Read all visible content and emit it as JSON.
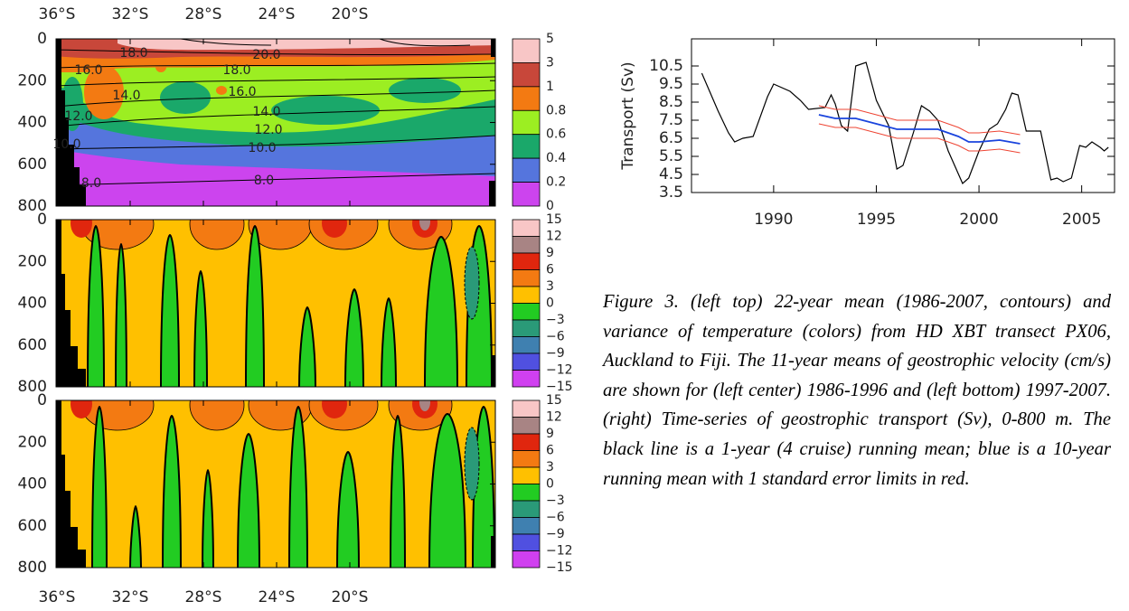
{
  "left_figure": {
    "latitude_labels": [
      "36°S",
      "32°S",
      "28°S",
      "24°S",
      "20°S"
    ],
    "depth_ticks": [
      0,
      200,
      400,
      600,
      800
    ],
    "contour_labels": [
      {
        "value": 18,
        "label": "18.0"
      },
      {
        "value": 20,
        "label": "20.0"
      },
      {
        "value": 16,
        "label": "16.0"
      },
      {
        "value": 18,
        "label": "18.0"
      },
      {
        "value": 14,
        "label": "14.0"
      },
      {
        "value": 16,
        "label": "16.0"
      },
      {
        "value": 12,
        "label": "12.0"
      },
      {
        "value": 14,
        "label": "14.0"
      },
      {
        "value": 12,
        "label": "12.0"
      },
      {
        "value": 10,
        "label": "10.0"
      },
      {
        "value": 10,
        "label": "10.0"
      },
      {
        "value": 8,
        "label": "8.0"
      },
      {
        "value": 8,
        "label": "8.0"
      }
    ],
    "colorbar_temperature": [
      5,
      3,
      1,
      0.8,
      0.6,
      0.4,
      0.2,
      0
    ],
    "colorbar_temperature_colors": [
      "#f8c6c6",
      "#c8473a",
      "#f37a12",
      "#9cee22",
      "#1aa86a",
      "#5575dd",
      "#cc44ee"
    ],
    "colorbar_velocity": [
      15,
      12,
      9,
      6,
      3,
      0,
      {
        "value": -3,
        "label": "−3"
      },
      {
        "value": -6,
        "label": "−6"
      },
      {
        "value": -9,
        "label": "−9"
      },
      {
        "value": -12,
        "label": "−12"
      },
      {
        "value": -15,
        "label": "−15"
      }
    ],
    "colorbar_velocity_colors": [
      "#f8c6c6",
      "#a88484",
      "#e0260e",
      "#f37a12",
      "#ffc000",
      "#22cc22",
      "#2a9a78",
      "#3f80b0",
      "#5050e0",
      "#d040f0"
    ]
  },
  "chart_data": {
    "type": "line",
    "y_label": "Transport (Sv)",
    "xlim": [
      1986,
      2006.6
    ],
    "ylim": [
      3.5,
      12
    ],
    "xticks": [
      1990,
      1995,
      2000,
      2005
    ],
    "yticks": [
      3.5,
      4.5,
      5.5,
      6.5,
      7.5,
      8.5,
      9.5,
      10.5
    ],
    "series": [
      {
        "color": "#000000",
        "x": [
          1986.5,
          1987.3,
          1987.8,
          1988.1,
          1988.5,
          1989.0,
          1989.7,
          1990.0,
          1990.8,
          1991.3,
          1991.7,
          1992.5,
          1992.8,
          1993.0,
          1993.3,
          1993.6,
          1994.0,
          1994.5,
          1995.0,
          1995.6,
          1996.0,
          1996.3,
          1996.8,
          1997.2,
          1997.6,
          1998.0,
          1998.5,
          1999.2,
          1999.5,
          2000.0,
          2000.5,
          2000.9,
          2001.3,
          2001.6,
          2001.9,
          2002.3,
          2003.0,
          2003.5,
          2003.8,
          2004.1,
          2004.5,
          2004.9,
          2005.2,
          2005.5,
          2005.9,
          2006.1,
          2006.3
        ],
        "values": [
          10.1,
          8.0,
          6.8,
          6.3,
          6.5,
          6.6,
          8.8,
          9.5,
          9.1,
          8.6,
          8.1,
          8.2,
          8.9,
          8.4,
          7.2,
          6.9,
          10.5,
          10.7,
          8.6,
          7.2,
          4.8,
          5.0,
          6.8,
          8.3,
          8.0,
          7.5,
          5.8,
          4.0,
          4.3,
          5.8,
          7.0,
          7.3,
          8.1,
          9.0,
          8.9,
          6.9,
          6.9,
          4.2,
          4.3,
          4.1,
          4.3,
          6.1,
          6.0,
          6.3,
          6.0,
          5.8,
          6.0
        ]
      },
      {
        "color": "#ee4433",
        "x": [
          1992.2,
          1993,
          1994,
          1995,
          1996,
          1997,
          1998,
          1999,
          1999.5,
          2000,
          2001,
          2002
        ],
        "values": [
          8.3,
          8.1,
          8.1,
          7.8,
          7.5,
          7.5,
          7.5,
          7.1,
          6.8,
          6.8,
          6.9,
          6.7
        ]
      },
      {
        "color": "#ee4433",
        "x": [
          1992.2,
          1993,
          1994,
          1995,
          1996,
          1997,
          1998,
          1999,
          1999.5,
          2000,
          2001,
          2002
        ],
        "values": [
          7.3,
          7.1,
          7.1,
          6.8,
          6.5,
          6.5,
          6.5,
          6.1,
          5.8,
          5.8,
          5.9,
          5.7
        ]
      },
      {
        "color": "#1a44dd",
        "x": [
          1992.2,
          1993,
          1994,
          1995,
          1996,
          1997,
          1998,
          1999,
          1999.5,
          2000,
          2001,
          2002
        ],
        "values": [
          7.8,
          7.6,
          7.6,
          7.3,
          7.0,
          7.0,
          7.0,
          6.6,
          6.3,
          6.3,
          6.4,
          6.2
        ]
      }
    ]
  },
  "caption": "Figure 3.  (left top) 22-year mean (1986-2007, contours) and variance of temperature (colors) from HD XBT transect PX06, Auckland to Fiji. The 11-year means of geostrophic velocity (cm/s) are shown for (left center) 1986-1996 and (left bottom) 1997-2007. (right) Time-series of geostrophic transport (Sv), 0-800 m. The black line is a 1-year (4 cruise) running mean; blue is a 10-year running mean with 1 standard error limits in red."
}
